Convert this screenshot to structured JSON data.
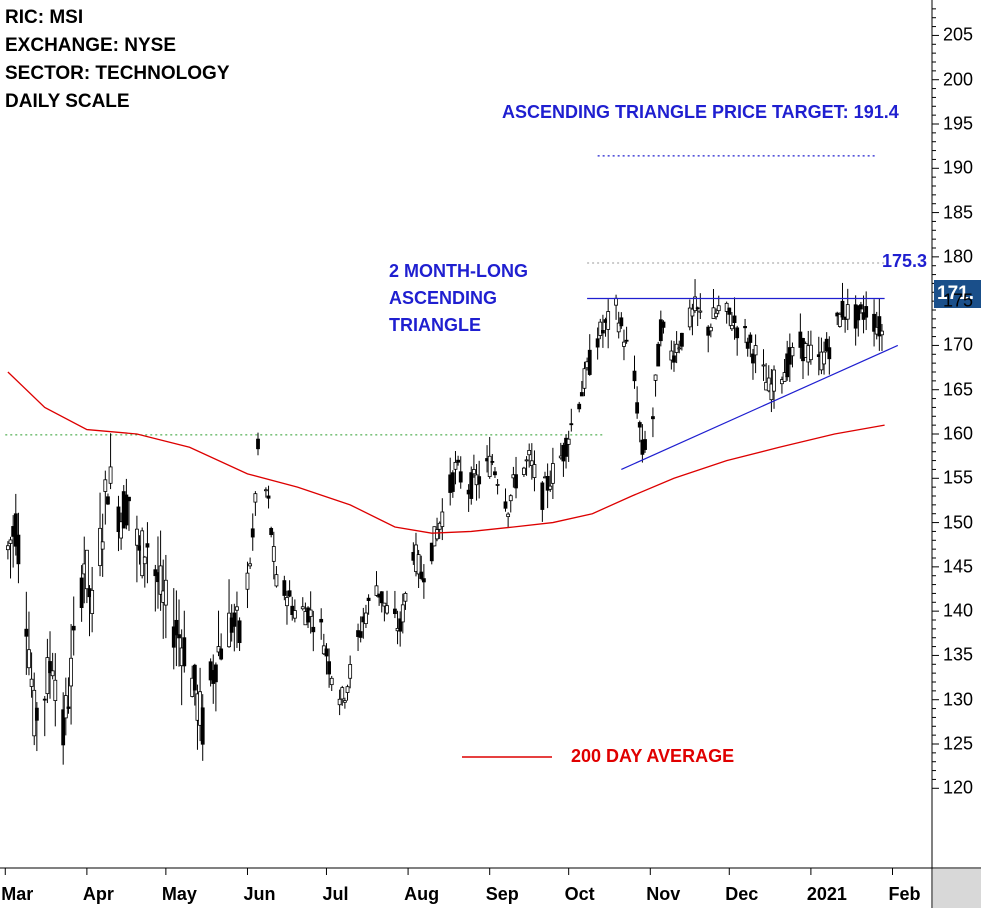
{
  "info": {
    "ric": "RIC: MSI",
    "exchange": "EXCHANGE: NYSE",
    "sector": "SECTOR: TECHNOLOGY",
    "scale": "DAILY SCALE"
  },
  "annotations": {
    "price_target": "ASCENDING TRIANGLE PRICE TARGET: 191.4",
    "pattern_line1": "2 MONTH-LONG",
    "pattern_line2": "ASCENDING",
    "pattern_line3": "TRIANGLE",
    "resistance_value": "175.3",
    "ma_legend": "200 DAY AVERAGE",
    "last_price": "171."
  },
  "colors": {
    "candle": "#000000",
    "moving_average": "#dd0000",
    "trendline": "#1f1fd0",
    "support_dotted": "#2e9e2e",
    "target_dotted": "#1f1fd0",
    "last_price_bg": "#1a4f8a"
  },
  "chart_data": {
    "type": "candlestick",
    "title": "",
    "xlabel": "",
    "ylabel": "",
    "ylim": [
      111,
      209
    ],
    "y_ticks": [
      120,
      125,
      130,
      135,
      140,
      145,
      150,
      155,
      160,
      165,
      170,
      175,
      180,
      185,
      190,
      195,
      200,
      205
    ],
    "x_ticks": [
      "Mar",
      "Apr",
      "May",
      "Jun",
      "Jul",
      "Aug",
      "Sep",
      "Oct",
      "Nov",
      "Dec",
      "2021",
      "Feb"
    ],
    "x_range": [
      "2020-02-28",
      "2021-02-16"
    ],
    "close_series": [
      [
        "2020-03-02",
        147
      ],
      [
        "2020-03-05",
        150
      ],
      [
        "2020-03-09",
        140
      ],
      [
        "2020-03-12",
        128
      ],
      [
        "2020-03-16",
        131
      ],
      [
        "2020-03-19",
        135
      ],
      [
        "2020-03-23",
        126
      ],
      [
        "2020-03-26",
        133
      ],
      [
        "2020-03-31",
        146
      ],
      [
        "2020-04-03",
        140
      ],
      [
        "2020-04-07",
        150
      ],
      [
        "2020-04-09",
        155
      ],
      [
        "2020-04-14",
        151
      ],
      [
        "2020-04-17",
        153
      ],
      [
        "2020-04-21",
        146
      ],
      [
        "2020-04-24",
        148
      ],
      [
        "2020-04-30",
        141
      ],
      [
        "2020-05-05",
        138
      ],
      [
        "2020-05-08",
        136
      ],
      [
        "2020-05-12",
        131
      ],
      [
        "2020-05-15",
        127
      ],
      [
        "2020-05-20",
        135
      ],
      [
        "2020-05-26",
        139
      ],
      [
        "2020-05-29",
        137
      ],
      [
        "2020-06-03",
        148
      ],
      [
        "2020-06-05",
        158
      ],
      [
        "2020-06-09",
        152
      ],
      [
        "2020-06-12",
        143
      ],
      [
        "2020-06-16",
        142
      ],
      [
        "2020-06-19",
        140
      ],
      [
        "2020-06-24",
        140
      ],
      [
        "2020-06-29",
        138
      ],
      [
        "2020-07-02",
        134
      ],
      [
        "2020-07-07",
        130
      ],
      [
        "2020-07-10",
        133
      ],
      [
        "2020-07-15",
        139
      ],
      [
        "2020-07-20",
        143
      ],
      [
        "2020-07-24",
        140
      ],
      [
        "2020-07-29",
        138
      ],
      [
        "2020-08-03",
        147
      ],
      [
        "2020-08-06",
        144
      ],
      [
        "2020-08-11",
        148
      ],
      [
        "2020-08-14",
        151
      ],
      [
        "2020-08-19",
        156
      ],
      [
        "2020-08-24",
        154
      ],
      [
        "2020-08-28",
        155
      ],
      [
        "2020-09-02",
        157
      ],
      [
        "2020-09-08",
        152
      ],
      [
        "2020-09-11",
        155
      ],
      [
        "2020-09-16",
        157
      ],
      [
        "2020-09-21",
        153
      ],
      [
        "2020-09-24",
        155
      ],
      [
        "2020-09-29",
        158
      ],
      [
        "2020-10-02",
        161
      ],
      [
        "2020-10-07",
        166
      ],
      [
        "2020-10-12",
        171
      ],
      [
        "2020-10-15",
        172
      ],
      [
        "2020-10-19",
        174
      ],
      [
        "2020-10-22",
        171
      ],
      [
        "2020-10-26",
        166
      ],
      [
        "2020-10-29",
        158
      ],
      [
        "2020-11-02",
        162
      ],
      [
        "2020-11-05",
        172
      ],
      [
        "2020-11-09",
        169
      ],
      [
        "2020-11-13",
        171
      ],
      [
        "2020-11-18",
        174
      ],
      [
        "2020-11-23",
        172
      ],
      [
        "2020-11-27",
        174
      ],
      [
        "2020-12-02",
        173
      ],
      [
        "2020-12-07",
        171
      ],
      [
        "2020-12-11",
        169
      ],
      [
        "2020-12-16",
        165
      ],
      [
        "2020-12-21",
        167
      ],
      [
        "2020-12-28",
        170
      ],
      [
        "2021-01-04",
        168
      ],
      [
        "2021-01-08",
        170
      ],
      [
        "2021-01-13",
        174
      ],
      [
        "2021-01-19",
        173
      ],
      [
        "2021-01-22",
        174
      ],
      [
        "2021-01-27",
        172
      ],
      [
        "2021-01-29",
        171
      ]
    ],
    "moving_average_200": [
      [
        "2020-03-02",
        167
      ],
      [
        "2020-03-16",
        163
      ],
      [
        "2020-04-01",
        160.5
      ],
      [
        "2020-04-20",
        160
      ],
      [
        "2020-05-10",
        158.5
      ],
      [
        "2020-06-01",
        155.5
      ],
      [
        "2020-06-20",
        154
      ],
      [
        "2020-07-10",
        152
      ],
      [
        "2020-07-27",
        149.5
      ],
      [
        "2020-08-10",
        148.8
      ],
      [
        "2020-08-25",
        149
      ],
      [
        "2020-09-10",
        149.5
      ],
      [
        "2020-09-25",
        150
      ],
      [
        "2020-10-10",
        151
      ],
      [
        "2020-10-25",
        153
      ],
      [
        "2020-11-10",
        155
      ],
      [
        "2020-11-30",
        157
      ],
      [
        "2020-12-20",
        158.5
      ],
      [
        "2021-01-10",
        160
      ],
      [
        "2021-01-29",
        161
      ]
    ],
    "resistance": {
      "value": 175.3,
      "from": "2020-10-08",
      "to": "2021-01-29"
    },
    "support_trendline": {
      "from": [
        "2020-10-21",
        156
      ],
      "to": [
        "2021-02-03",
        170
      ]
    },
    "support_level": {
      "value": 159.9,
      "from": "2020-03-01",
      "to": "2020-10-14"
    },
    "target_level": {
      "value": 191.4,
      "from": "2020-10-12",
      "to": "2021-01-26"
    },
    "upper_dotted": {
      "value": 179.3,
      "from": "2020-10-08",
      "to": "2021-01-29"
    },
    "last_price": 171
  }
}
